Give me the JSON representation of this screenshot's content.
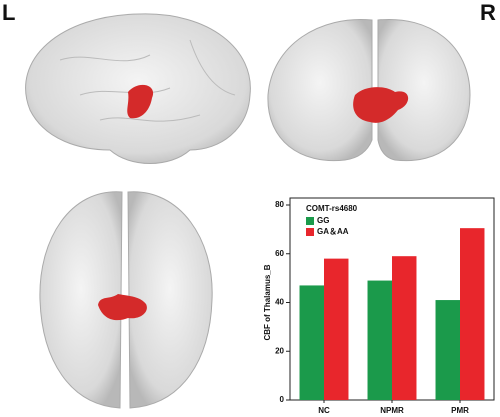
{
  "panel_labels": {
    "left": "L",
    "right": "R"
  },
  "chart_data": {
    "type": "bar",
    "ylabel": "CBF of Thalamus_B",
    "legend_title": "COMT-rs4680",
    "legend": "upper left",
    "categories": [
      "NC",
      "NPMR",
      "PMR"
    ],
    "series": [
      {
        "name": "GG",
        "color": "#1b9a4b",
        "values": [
          47,
          49,
          41
        ]
      },
      {
        "name": "GA＆AA",
        "color": "#e8262c",
        "values": [
          58,
          59,
          70.5
        ]
      }
    ],
    "ylim": [
      0,
      80
    ],
    "yticks": [
      0,
      20,
      40,
      60,
      80
    ]
  }
}
